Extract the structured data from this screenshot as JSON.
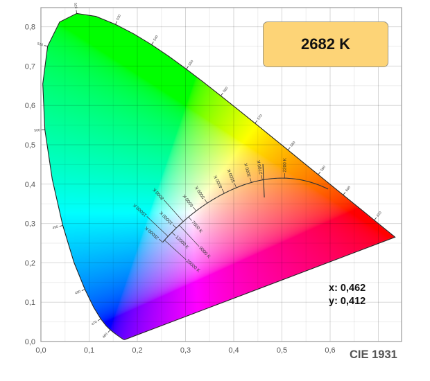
{
  "cct_label": "2682 K",
  "readout": {
    "x": "x: 0,462",
    "y": "y: 0,412"
  },
  "title": "CIE 1931",
  "colors": {
    "box_fill": "#fdd477",
    "box_border": "#9b9684",
    "curve": "#333333"
  },
  "chart_data": {
    "type": "scatter",
    "title": "CIE 1931",
    "xlabel": "",
    "ylabel": "",
    "xlim": [
      0,
      0.75
    ],
    "ylim": [
      0,
      0.85
    ],
    "grid": true,
    "x_ticks": [
      "0,0",
      "0,1",
      "0,2",
      "0,3",
      "0,4",
      "0,5",
      "0,6"
    ],
    "x_tick_values": [
      0,
      0.1,
      0.2,
      0.3,
      0.4,
      0.5,
      0.6
    ],
    "y_ticks": [
      "0,0",
      "0,1",
      "0,2",
      "0,3",
      "0,4",
      "0,5",
      "0,6",
      "0,7",
      "0,8"
    ],
    "y_tick_values": [
      0,
      0.1,
      0.2,
      0.3,
      0.4,
      0.5,
      0.6,
      0.7,
      0.8
    ],
    "point": {
      "x": 0.462,
      "y": 0.412,
      "cct_k": 2682
    },
    "planckian_labels": [
      {
        "t": 2200,
        "label": "2200 K"
      },
      {
        "t": 2700,
        "label": "2700 K"
      },
      {
        "t": 3000,
        "label": "3000 K"
      },
      {
        "t": 3500,
        "label": "3500 K"
      },
      {
        "t": 4000,
        "label": "4000 K"
      },
      {
        "t": 5000,
        "label": "5000 K"
      },
      {
        "t": 6000,
        "label": "6000 K"
      },
      {
        "t": 7000,
        "label": "7000 K"
      },
      {
        "t": 8000,
        "label": "8000 K"
      },
      {
        "t": 9000,
        "label": "9000 K"
      },
      {
        "t": 10000,
        "label": "10000 K"
      },
      {
        "t": 12000,
        "label": "12000 K"
      },
      {
        "t": 15000,
        "label": "15000 K"
      },
      {
        "t": 20000,
        "label": "20000 K"
      },
      {
        "t": 25000,
        "label": "25000 K"
      }
    ],
    "wavelength_labels": [
      "460",
      "470",
      "480",
      "490",
      "500",
      "510",
      "520",
      "530",
      "540",
      "550",
      "560",
      "570",
      "580",
      "590",
      "600",
      "620"
    ]
  }
}
